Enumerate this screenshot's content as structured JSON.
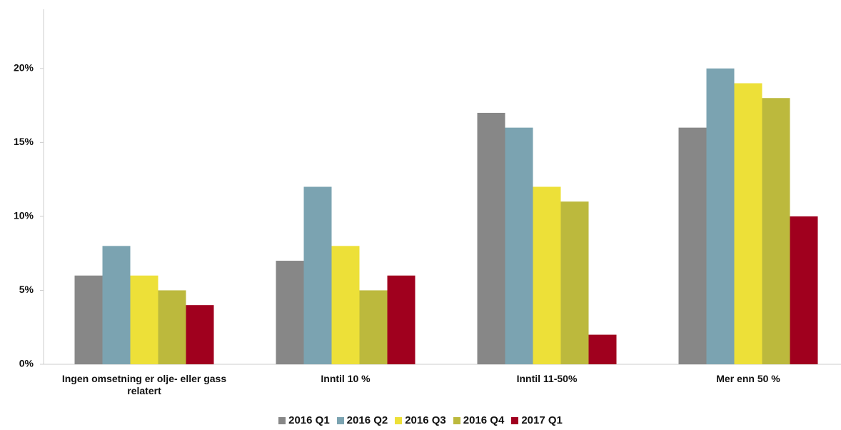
{
  "chart_data": {
    "type": "bar",
    "categories": [
      "Ingen omsetning er olje- eller gass relatert",
      "Inntil 10 %",
      "Inntil 11-50%",
      "Mer enn 50 %"
    ],
    "series": [
      {
        "name": "2016 Q1",
        "color": "#878787",
        "values": [
          6,
          7,
          17,
          16
        ]
      },
      {
        "name": "2016 Q2",
        "color": "#7ba3b1",
        "values": [
          8,
          12,
          16,
          20
        ]
      },
      {
        "name": "2016 Q3",
        "color": "#ede038",
        "values": [
          6,
          8,
          12,
          19
        ]
      },
      {
        "name": "2016 Q4",
        "color": "#bcb93d",
        "values": [
          5,
          5,
          11,
          18
        ]
      },
      {
        "name": "2017 Q1",
        "color": "#a0001e",
        "values": [
          4,
          6,
          2,
          10
        ]
      }
    ],
    "ylim": [
      0,
      24
    ],
    "yticks": [
      {
        "value": 0,
        "label": "0%"
      },
      {
        "value": 5,
        "label": "5%"
      },
      {
        "value": 10,
        "label": "10%"
      },
      {
        "value": 15,
        "label": "15%"
      },
      {
        "value": 20,
        "label": "20%"
      }
    ],
    "grid": false,
    "legend": "bottom"
  }
}
